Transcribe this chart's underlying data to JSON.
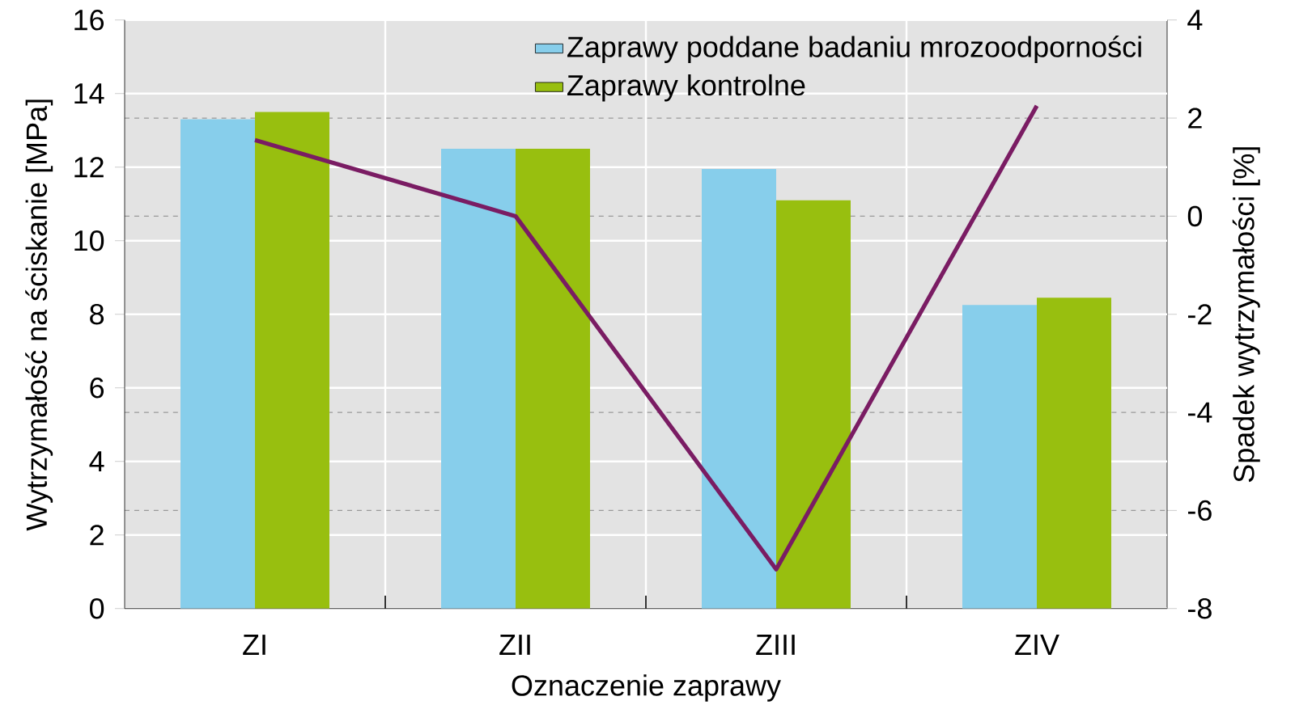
{
  "chart_data": {
    "type": "bar",
    "categories": [
      "ZI",
      "ZII",
      "ZIII",
      "ZIV"
    ],
    "xlabel": "Oznaczenie zaprawy",
    "ylabel": "Wytrzymałość na ściskanie [MPa]",
    "y2label": "Spadek wytrzymałości [%]",
    "series": [
      {
        "name": "Zaprawy poddane badaniu mrozoodporności",
        "color": "#87ceeb",
        "values": [
          13.3,
          12.5,
          11.95,
          8.25
        ]
      },
      {
        "name": "Zaprawy kontrolne",
        "color": "#98bf0f",
        "values": [
          13.5,
          12.5,
          11.1,
          8.45
        ]
      },
      {
        "type": "line",
        "axis": "y2",
        "color": "#7a1c63",
        "values": [
          1.55,
          0.0,
          -7.2,
          2.25
        ]
      }
    ],
    "ylim": [
      0,
      16
    ],
    "yticks": [
      0,
      2,
      4,
      6,
      8,
      10,
      12,
      14,
      16
    ],
    "y2lim": [
      -8,
      4
    ],
    "y2ticks": [
      -8,
      -6,
      -4,
      -2,
      0,
      2,
      4
    ],
    "grid": true,
    "legend": "top right"
  }
}
